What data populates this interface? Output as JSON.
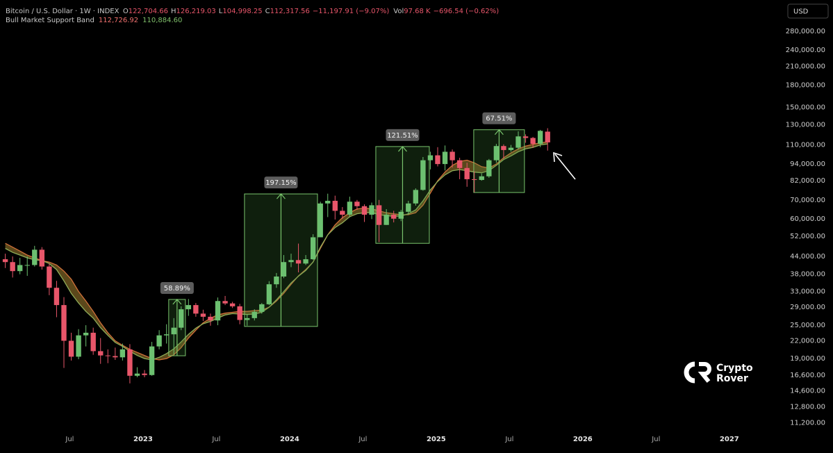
{
  "chart_data": {
    "type": "candlestick",
    "title": "Bitcoin / U.S. Dollar · 1W · INDEX",
    "quote": [
      [
        "O",
        "122,704.66"
      ],
      [
        "H",
        "126,219.03"
      ],
      [
        "L",
        "104,998.25"
      ],
      [
        "C",
        "112,317.56"
      ]
    ],
    "change": "−11,197.91 (−9.07%)",
    "vol_label": "Vol",
    "vol": "97.68 K",
    "vol_change": "−696.54 (−0.62%)",
    "currency": "USD",
    "watermark": [
      "Crypto",
      "Rover"
    ],
    "grid": false,
    "log_scale": true,
    "up_color": "#6cc070",
    "down_color": "#e8566a",
    "xlim": [
      2022.024,
      2027.38
    ],
    "ylim": [
      10500,
      362000
    ],
    "xticks": [
      {
        "value": 2022.5,
        "label": "Jul"
      },
      {
        "value": 2023,
        "label": "2023"
      },
      {
        "value": 2023.5,
        "label": "Jul"
      },
      {
        "value": 2024,
        "label": "2024"
      },
      {
        "value": 2024.5,
        "label": "Jul"
      },
      {
        "value": 2025,
        "label": "2025"
      },
      {
        "value": 2025.5,
        "label": "Jul"
      },
      {
        "value": 2026,
        "label": "2026"
      },
      {
        "value": 2026.5,
        "label": "Jul"
      },
      {
        "value": 2027,
        "label": "2027"
      }
    ],
    "yticks": [
      {
        "value": 280000,
        "label": "280,000.00"
      },
      {
        "value": 240000,
        "label": "240,000.00"
      },
      {
        "value": 210000,
        "label": "210,000.00"
      },
      {
        "value": 180000,
        "label": "180,000.00"
      },
      {
        "value": 150000,
        "label": "150,000.00"
      },
      {
        "value": 130000,
        "label": "130,000.00"
      },
      {
        "value": 110000,
        "label": "110,000.00"
      },
      {
        "value": 94000,
        "label": "94,000.00"
      },
      {
        "value": 82000,
        "label": "82,000.00"
      },
      {
        "value": 70000,
        "label": "70,000.00"
      },
      {
        "value": 60000,
        "label": "60,000.00"
      },
      {
        "value": 52000,
        "label": "52,000.00"
      },
      {
        "value": 44000,
        "label": "44,000.00"
      },
      {
        "value": 38000,
        "label": "38,000.00"
      },
      {
        "value": 33000,
        "label": "33,000.00"
      },
      {
        "value": 29000,
        "label": "29,000.00"
      },
      {
        "value": 25000,
        "label": "25,000.00"
      },
      {
        "value": 22000,
        "label": "22,000.00"
      },
      {
        "value": 19000,
        "label": "19,000.00"
      },
      {
        "value": 16600,
        "label": "16,600.00"
      },
      {
        "value": 14600,
        "label": "14,600.00"
      },
      {
        "value": 12800,
        "label": "12,800.00"
      },
      {
        "value": 11200,
        "label": "11,200.00"
      }
    ],
    "candles": {
      "x": [
        2022.06,
        2022.11,
        2022.16,
        2022.21,
        2022.26,
        2022.31,
        2022.36,
        2022.41,
        2022.46,
        2022.51,
        2022.56,
        2022.61,
        2022.66,
        2022.71,
        2022.76,
        2022.81,
        2022.86,
        2022.91,
        2022.96,
        2023.01,
        2023.06,
        2023.11,
        2023.16,
        2023.21,
        2023.26,
        2023.31,
        2023.36,
        2023.41,
        2023.46,
        2023.51,
        2023.56,
        2023.61,
        2023.66,
        2023.71,
        2023.76,
        2023.81,
        2023.86,
        2023.91,
        2023.96,
        2024.01,
        2024.06,
        2024.11,
        2024.16,
        2024.21,
        2024.26,
        2024.31,
        2024.36,
        2024.41,
        2024.46,
        2024.51,
        2024.56,
        2024.61,
        2024.66,
        2024.71,
        2024.76,
        2024.81,
        2024.86,
        2024.91,
        2024.96,
        2025.01,
        2025.06,
        2025.11,
        2025.16,
        2025.21,
        2025.26,
        2025.31,
        2025.36,
        2025.41,
        2025.46,
        2025.51,
        2025.56,
        2025.61,
        2025.66,
        2025.71,
        2025.76
      ],
      "open": [
        43000,
        42000,
        39000,
        41000,
        41000,
        46500,
        40500,
        34000,
        29500,
        22000,
        19300,
        23000,
        23500,
        20200,
        19500,
        19400,
        19200,
        20500,
        16500,
        16800,
        16600,
        21000,
        23000,
        23200,
        24500,
        28500,
        29500,
        27500,
        26800,
        26000,
        30500,
        29900,
        29200,
        26100,
        26500,
        27900,
        29700,
        35000,
        37300,
        42000,
        42700,
        41500,
        43000,
        51500,
        68000,
        69500,
        64000,
        62000,
        69000,
        66500,
        62000,
        67000,
        57000,
        62000,
        60000,
        63500,
        68000,
        76000,
        97000,
        101000,
        94000,
        104000,
        97000,
        91000,
        83000,
        82500,
        85000,
        97000,
        109000,
        105500,
        107500,
        118000,
        116500,
        111000,
        122704.66
      ],
      "high": [
        45000,
        44000,
        43500,
        44000,
        48000,
        47500,
        41500,
        36000,
        31500,
        23500,
        24200,
        25000,
        24500,
        22500,
        20500,
        20800,
        21500,
        21400,
        17700,
        17300,
        21800,
        24000,
        25200,
        26500,
        29200,
        31000,
        30000,
        28400,
        27500,
        31400,
        31800,
        30300,
        29800,
        27400,
        28500,
        30000,
        35900,
        38400,
        44500,
        45000,
        48900,
        44500,
        52800,
        69000,
        73700,
        72500,
        66000,
        71900,
        70000,
        67500,
        68500,
        70000,
        64900,
        64000,
        64500,
        69500,
        77000,
        99600,
        104000,
        108000,
        109500,
        106000,
        99000,
        95000,
        88500,
        87000,
        98000,
        111000,
        110500,
        110000,
        123000,
        120000,
        117500,
        124500,
        126219.03
      ],
      "low": [
        40000,
        37000,
        38000,
        37500,
        40500,
        39500,
        32000,
        26700,
        17600,
        18700,
        18900,
        21000,
        19600,
        18200,
        18300,
        18800,
        18700,
        15500,
        16300,
        16300,
        16500,
        20500,
        21500,
        19600,
        24000,
        27000,
        26800,
        25900,
        24900,
        25000,
        29500,
        28800,
        25200,
        24900,
        26000,
        27500,
        29500,
        34000,
        36800,
        40300,
        38600,
        41000,
        42800,
        51500,
        60800,
        59600,
        60000,
        60700,
        64500,
        58400,
        59800,
        49500,
        57000,
        58200,
        58800,
        62000,
        66800,
        75500,
        90000,
        92200,
        89200,
        91300,
        83000,
        78000,
        74500,
        82000,
        84000,
        95000,
        98200,
        104000,
        106000,
        112000,
        107300,
        108000,
        104998.25
      ],
      "close": [
        42000,
        39000,
        41000,
        41000,
        46500,
        40500,
        34000,
        29500,
        22000,
        19300,
        23000,
        23500,
        20200,
        19500,
        19400,
        19200,
        20500,
        16500,
        16800,
        16600,
        21000,
        23000,
        23200,
        24500,
        28500,
        29500,
        27500,
        26800,
        26000,
        30500,
        29900,
        29200,
        26100,
        26500,
        27900,
        29700,
        35000,
        37300,
        42000,
        42700,
        41500,
        43000,
        51500,
        68000,
        69500,
        64000,
        62000,
        69000,
        66500,
        62000,
        67000,
        57000,
        62000,
        60000,
        63500,
        68000,
        76000,
        97000,
        101000,
        94000,
        104000,
        97000,
        91000,
        83000,
        82500,
        85000,
        97000,
        109000,
        105500,
        107500,
        118000,
        116500,
        111000,
        123515,
        112317.56
      ]
    },
    "band": {
      "name": "Bull Market Support Band",
      "fill": "#6b5520",
      "series": [
        {
          "color": "#d0703a",
          "label_color": "#f0706e",
          "value_label": "112,726.92",
          "values": [
            49000,
            47500,
            46000,
            44500,
            43500,
            42500,
            42000,
            41000,
            39000,
            36500,
            33000,
            30500,
            28000,
            25500,
            23500,
            22000,
            21200,
            20500,
            20000,
            19500,
            19000,
            18800,
            19000,
            19600,
            20800,
            22500,
            24000,
            25500,
            26500,
            27200,
            27600,
            27800,
            28000,
            28000,
            28200,
            28300,
            29000,
            30500,
            32500,
            35000,
            37500,
            39500,
            42000,
            47000,
            52500,
            57000,
            60500,
            63000,
            65000,
            65500,
            65000,
            64000,
            63000,
            62500,
            62000,
            62000,
            63000,
            67000,
            74000,
            82000,
            88000,
            93000,
            96000,
            97000,
            95000,
            92000,
            91000,
            94000,
            99000,
            103000,
            106500,
            109000,
            110500,
            112000,
            112726.92
          ]
        },
        {
          "color": "#8fae5a",
          "label_color": "#7fbf6a",
          "value_label": "110,884.60",
          "values": [
            47000,
            45500,
            44500,
            43500,
            42800,
            42500,
            41500,
            39500,
            36000,
            32500,
            30000,
            28000,
            26500,
            24500,
            23000,
            21700,
            21000,
            20200,
            19500,
            19000,
            18800,
            19200,
            19800,
            20600,
            21800,
            23200,
            24400,
            25300,
            25800,
            26500,
            27200,
            27500,
            27400,
            27300,
            27400,
            27800,
            29000,
            30800,
            33000,
            35400,
            37400,
            39200,
            42000,
            47500,
            52500,
            55800,
            58000,
            61000,
            62500,
            63000,
            63200,
            62000,
            61500,
            61200,
            61300,
            62500,
            64500,
            69500,
            76000,
            81500,
            86000,
            89000,
            89800,
            89000,
            88000,
            87500,
            89000,
            93000,
            97500,
            100500,
            104000,
            106500,
            107800,
            110000,
            110884.6
          ]
        }
      ]
    },
    "annotations": [
      {
        "label": "58.89%",
        "x": [
          2023.175,
          2023.289
        ],
        "low": 19450,
        "high": 30900
      },
      {
        "label": "197.15%",
        "x": [
          2023.692,
          2024.19
        ],
        "low": 24750,
        "high": 73550
      },
      {
        "label": "121.51%",
        "x": [
          2024.588,
          2024.953
        ],
        "low": 49000,
        "high": 108550
      },
      {
        "label": "67.51%",
        "x": [
          2025.256,
          2025.602
        ],
        "low": 74400,
        "high": 124650
      }
    ]
  }
}
